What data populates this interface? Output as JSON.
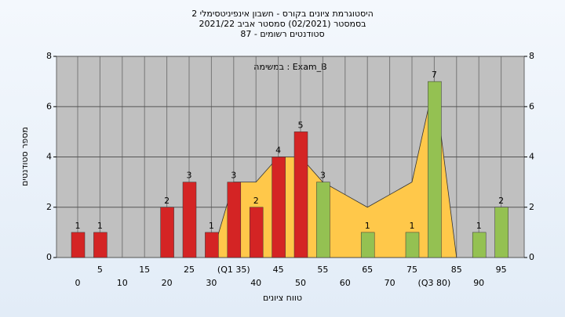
{
  "chart_data": {
    "type": "bar",
    "title": [
      "היסטוגרמת ציונים בקורס - חשבון אינפיניטסימלי 2",
      "בסמסטר  (02/2021)  סמסטר אביב 2021/22",
      "סטודנטים רשומים - 87"
    ],
    "annotation": "במשימה : Exam_B",
    "x_label": "טווח ציונים",
    "y_label": "מספר סטודנטים",
    "categories": [
      "0",
      "5",
      "10",
      "15",
      "20",
      "25",
      "30",
      "(Q1 35)",
      "40",
      "45",
      "50",
      "55",
      "60",
      "65",
      "70",
      "75",
      "(Q3 80)",
      "85",
      "90",
      "95"
    ],
    "values": [
      1,
      1,
      0,
      0,
      2,
      3,
      1,
      3,
      2,
      4,
      5,
      3,
      0,
      1,
      0,
      1,
      7,
      0,
      1,
      2
    ],
    "value_labels": [
      "1",
      "1",
      null,
      null,
      "2",
      "3",
      "1",
      "3",
      "2",
      "4",
      "5",
      "3",
      null,
      "1",
      null,
      "1",
      "7",
      null,
      "1",
      "2"
    ],
    "colors": [
      "#d42424",
      "#d42424",
      "#d42424",
      "#d42424",
      "#d42424",
      "#d42424",
      "#d42424",
      "#d42424",
      "#d42424",
      "#d42424",
      "#d42424",
      "#94c152",
      "#94c152",
      "#94c152",
      "#94c152",
      "#94c152",
      "#94c152",
      "#94c152",
      "#94c152",
      "#94c152"
    ],
    "area": {
      "color": "#ffc84a",
      "values": [
        null,
        null,
        null,
        null,
        null,
        null,
        0,
        3,
        3,
        4,
        4,
        3,
        2.5,
        2,
        2.5,
        3,
        7,
        0,
        null,
        null
      ]
    },
    "ylim": [
      0,
      8
    ],
    "yticks": [
      0,
      2,
      4,
      6,
      8
    ],
    "y2lim": [
      0,
      8
    ],
    "y2ticks": [
      0,
      2,
      4,
      6,
      8
    ],
    "grid": true
  }
}
